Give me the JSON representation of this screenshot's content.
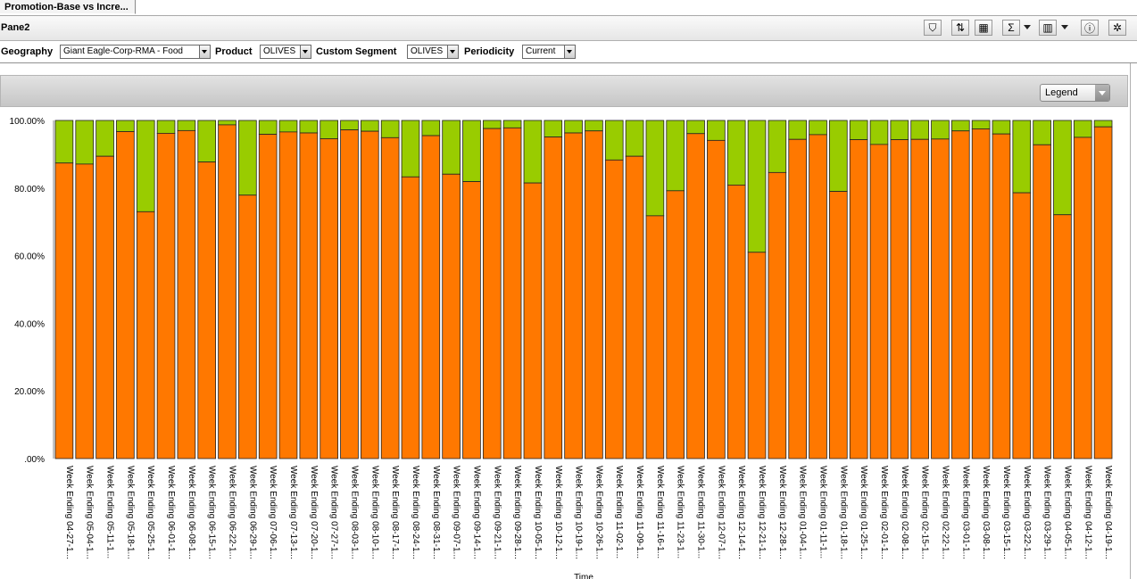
{
  "tab": {
    "label": "Promotion-Base vs Incre..."
  },
  "pane": {
    "title": "Pane2"
  },
  "toolbar": {
    "buttons": [
      {
        "name": "filter-button",
        "icon": "filter-icon",
        "glyph": "⛉"
      },
      {
        "name": "sort-button",
        "icon": "sort-icon",
        "glyph": "⇅"
      },
      {
        "name": "pivot-button",
        "icon": "pivot-icon",
        "glyph": "▦"
      },
      {
        "name": "sum-button",
        "icon": "sum-icon",
        "glyph": "Σ"
      },
      {
        "name": "layout-button",
        "icon": "grid-layout-icon",
        "glyph": "▥"
      },
      {
        "name": "info-button",
        "icon": "info-icon",
        "glyph": "ⓘ"
      },
      {
        "name": "settings-button",
        "icon": "tools-icon",
        "glyph": "✲"
      }
    ]
  },
  "filters": {
    "geography": {
      "label": "Geography",
      "value": "Giant Eagle-Corp-RMA - Food"
    },
    "product": {
      "label": "Product",
      "value": "OLIVES"
    },
    "segment": {
      "label": "Custom Segment",
      "value": "OLIVES"
    },
    "periodicity": {
      "label": "Periodicity",
      "value": "Current"
    }
  },
  "legend": {
    "label": "Legend"
  },
  "colors": {
    "base": "#ff7800",
    "incremental": "#99cc00",
    "outline": "#222222"
  },
  "chart_data": {
    "type": "bar",
    "stacked": true,
    "xlabel": "Time",
    "ylabel": "",
    "ylim": [
      0,
      100
    ],
    "yticks": [
      ".00%",
      "20.00%",
      "40.00%",
      "60.00%",
      "80.00%",
      "100.00%"
    ],
    "categories": [
      "Week Ending 04-27-1...",
      "Week Ending 05-04-1...",
      "Week Ending 05-11-1...",
      "Week Ending 05-18-1...",
      "Week Ending 05-25-1...",
      "Week Ending 06-01-1...",
      "Week Ending 06-08-1...",
      "Week Ending 06-15-1...",
      "Week Ending 06-22-1...",
      "Week Ending 06-29-1...",
      "Week Ending 07-06-1...",
      "Week Ending 07-13-1...",
      "Week Ending 07-20-1...",
      "Week Ending 07-27-1...",
      "Week Ending 08-03-1...",
      "Week Ending 08-10-1...",
      "Week Ending 08-17-1...",
      "Week Ending 08-24-1...",
      "Week Ending 08-31-1...",
      "Week Ending 09-07-1...",
      "Week Ending 09-14-1...",
      "Week Ending 09-21-1...",
      "Week Ending 09-28-1...",
      "Week Ending 10-05-1...",
      "Week Ending 10-12-1...",
      "Week Ending 10-19-1...",
      "Week Ending 10-26-1...",
      "Week Ending 11-02-1...",
      "Week Ending 11-09-1...",
      "Week Ending 11-16-1...",
      "Week Ending 11-23-1...",
      "Week Ending 11-30-1...",
      "Week Ending 12-07-1...",
      "Week Ending 12-14-1...",
      "Week Ending 12-21-1...",
      "Week Ending 12-28-1...",
      "Week Ending 01-04-1...",
      "Week Ending 01-11-1...",
      "Week Ending 01-18-1...",
      "Week Ending 01-25-1...",
      "Week Ending 02-01-1...",
      "Week Ending 02-08-1...",
      "Week Ending 02-15-1...",
      "Week Ending 02-22-1...",
      "Week Ending 03-01-1...",
      "Week Ending 03-08-1...",
      "Week Ending 03-15-1...",
      "Week Ending 03-22-1...",
      "Week Ending 03-29-1...",
      "Week Ending 04-05-1...",
      "Week Ending 04-12-1...",
      "Week Ending 04-19-1..."
    ],
    "series": [
      {
        "values": [
          87.4,
          87.1,
          89.4,
          96.7,
          73.0,
          96.2,
          97.0,
          87.7,
          98.7,
          77.9,
          95.9,
          96.6,
          96.3,
          94.6,
          97.2,
          96.8,
          94.9,
          83.3,
          95.5,
          84.1,
          81.9,
          97.6,
          97.8,
          81.5,
          95.1,
          96.3,
          96.9,
          88.3,
          89.4,
          71.8,
          79.2,
          96.1,
          94.1,
          80.9,
          61.0,
          84.6,
          94.4,
          95.8,
          79.0,
          94.3,
          92.9,
          94.3,
          94.4,
          94.5,
          96.9,
          97.5,
          96.0,
          78.6,
          92.8,
          72.1,
          95.0,
          98.1
        ]
      },
      {
        "values": [
          12.6,
          12.9,
          10.6,
          3.3,
          27.0,
          3.8,
          3.0,
          12.3,
          1.3,
          22.1,
          4.1,
          3.4,
          3.7,
          5.4,
          2.8,
          3.2,
          5.1,
          16.7,
          4.5,
          15.9,
          18.1,
          2.4,
          2.2,
          18.5,
          4.9,
          3.7,
          3.1,
          11.7,
          10.6,
          28.2,
          20.8,
          3.9,
          5.9,
          19.1,
          39.0,
          15.4,
          5.6,
          4.2,
          21.0,
          5.7,
          7.1,
          5.7,
          5.6,
          5.5,
          3.1,
          2.5,
          4.0,
          21.4,
          7.2,
          27.9,
          5.0,
          1.9
        ]
      }
    ]
  }
}
